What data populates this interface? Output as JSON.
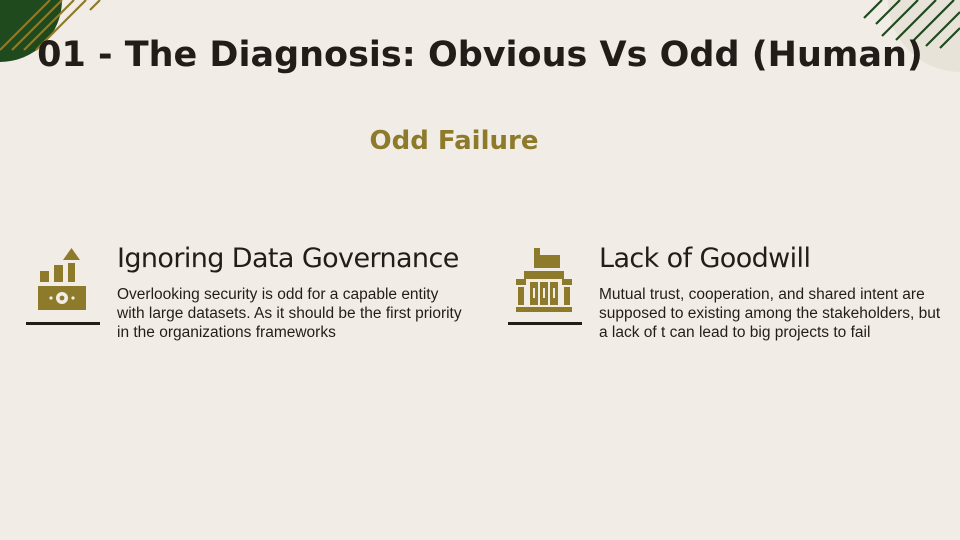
{
  "slide": {
    "title": "01 - The Diagnosis: Obvious Vs Odd (Human)",
    "subtitle": "Odd Failure"
  },
  "cards": [
    {
      "heading": "Ignoring Data Governance",
      "body": "Overlooking security is odd for a capable entity with large datasets. As it should be the first priority in the organizations frameworks",
      "icon": "factory-growth-icon"
    },
    {
      "heading": "Lack of Goodwill",
      "body": "Mutual trust, cooperation, and shared intent are supposed to existing among the stakeholders, but a lack of t can lead to big projects to fail",
      "icon": "building-icon"
    }
  ],
  "colors": {
    "background": "#f1ede6",
    "accent": "#8d7a2b",
    "text": "#221d18",
    "deco_green": "#1f4a1d"
  }
}
